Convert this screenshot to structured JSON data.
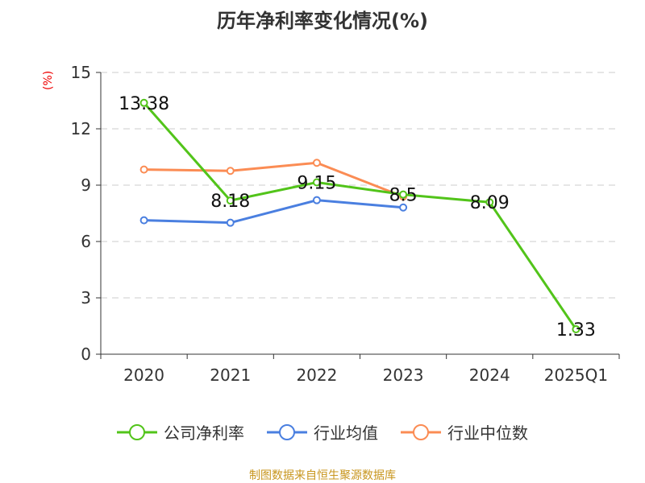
{
  "chart_data": {
    "type": "line",
    "title": "历年净利率变化情况(%)",
    "ylabel": "(%)",
    "categories": [
      "2020",
      "2021",
      "2022",
      "2023",
      "2024",
      "2025Q1"
    ],
    "ylim": [
      0,
      15
    ],
    "yticks": [
      0,
      3,
      6,
      9,
      12,
      15
    ],
    "grid": true,
    "legend_position": "bottom",
    "series": [
      {
        "name": "公司净利率",
        "color": "#52c41a",
        "values": [
          13.38,
          8.18,
          9.15,
          8.5,
          8.09,
          1.33
        ],
        "labels": [
          "13.38",
          "8.18",
          "9.15",
          "8.5",
          "8.09",
          "1.33"
        ]
      },
      {
        "name": "行业均值",
        "color": "#4a7fe0",
        "values": [
          7.13,
          7.0,
          8.2,
          7.81,
          null,
          null
        ]
      },
      {
        "name": "行业中位数",
        "color": "#fb8c54",
        "values": [
          9.83,
          9.76,
          10.19,
          8.39,
          null,
          null
        ]
      }
    ]
  },
  "source": "制图数据来自恒生聚源数据库"
}
